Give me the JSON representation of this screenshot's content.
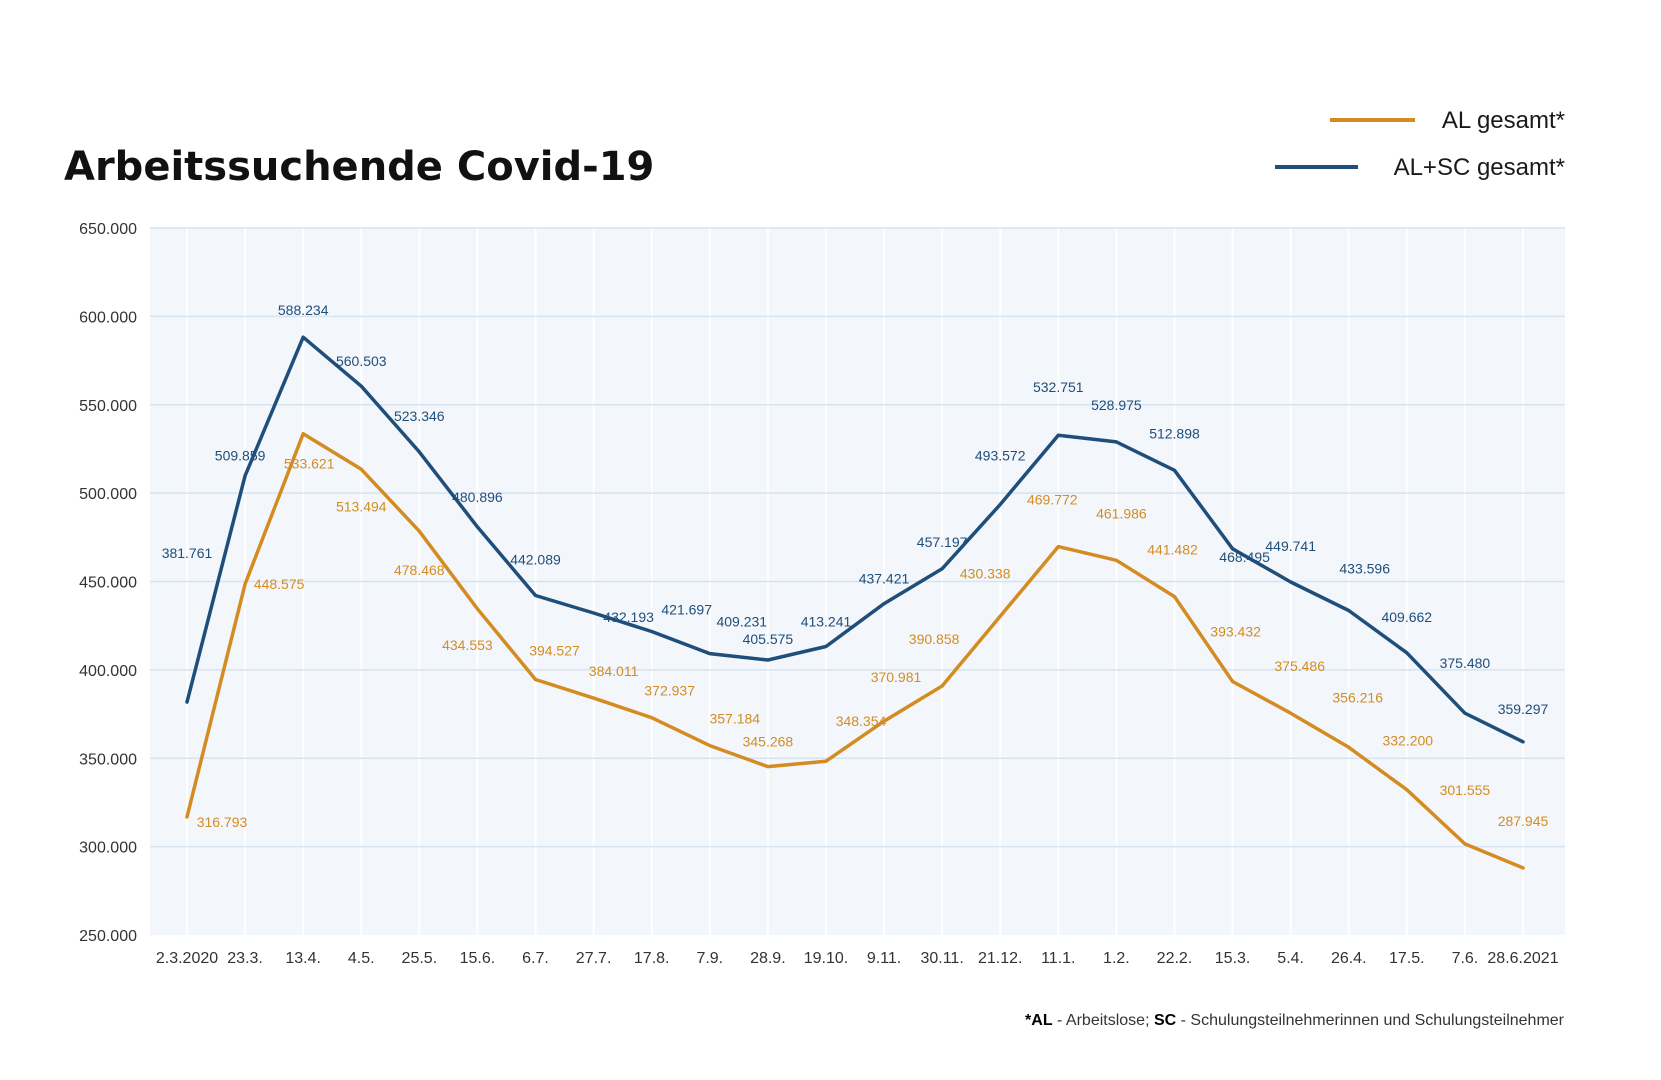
{
  "colors": {
    "al": "#d48c22",
    "alsc": "#1f4e7a",
    "plot_bg": "#f3f7fc",
    "gridline": "#d6e4f2",
    "vgrid": "#ffffff"
  },
  "chart_data": {
    "type": "line",
    "title": "Arbeitssuchende Covid-19",
    "xlabel": "",
    "ylabel": "",
    "ylim": [
      250000,
      650000
    ],
    "yticks": [
      650000,
      600000,
      550000,
      500000,
      450000,
      400000,
      350000,
      300000,
      250000
    ],
    "ytick_labels": [
      "650.000",
      "600.000",
      "550.000",
      "500.000",
      "450.000",
      "400.000",
      "350.000",
      "300.000",
      "250.000"
    ],
    "categories": [
      "2.3.2020",
      "23.3.",
      "13.4.",
      "4.5.",
      "25.5.",
      "15.6.",
      "6.7.",
      "27.7.",
      "17.8.",
      "7.9.",
      "28.9.",
      "19.10.",
      "9.11.",
      "30.11.",
      "21.12.",
      "11.1.",
      "1.2.",
      "22.2.",
      "15.3.",
      "5.4.",
      "26.4.",
      "17.5.",
      "7.6.",
      "28.6.2021"
    ],
    "legend_position": "top-right",
    "series": [
      {
        "name": "AL gesamt*",
        "color_key": "al",
        "values": [
          316793,
          448575,
          533621,
          513494,
          478468,
          434553,
          394527,
          384011,
          372937,
          357184,
          345268,
          348354,
          370981,
          390858,
          430338,
          469772,
          461986,
          441482,
          393432,
          375486,
          356216,
          332200,
          301555,
          287945
        ],
        "labels": [
          "316.793",
          "448.575",
          "533.621",
          "513.494",
          "478.468",
          "434.553",
          "394.527",
          "384.011",
          "372.937",
          "357.184",
          "345.268",
          "348.354",
          "370.981",
          "390.858",
          "430.338",
          "469.772",
          "461.986",
          "441.482",
          "393.432",
          "375.486",
          "356.216",
          "332.200",
          "301.555",
          "287.945"
        ]
      },
      {
        "name": "AL+SC gesamt*",
        "color_key": "alsc",
        "values": [
          381761,
          509859,
          588234,
          560503,
          523346,
          480896,
          442089,
          432193,
          421697,
          409231,
          405575,
          413241,
          437421,
          457197,
          493572,
          532751,
          528975,
          512898,
          468495,
          449741,
          433596,
          409662,
          375480,
          359297
        ],
        "labels": [
          "381.761",
          "509.859",
          "588.234",
          "560.503",
          "523.346",
          "480.896",
          "442.089",
          "432.193",
          "421.697",
          "409.231",
          "405.575",
          "413.241",
          "437.421",
          "457.197",
          "493.572",
          "532.751",
          "528.975",
          "512.898",
          "468.495",
          "449.741",
          "433.596",
          "409.662",
          "375.480",
          "359.297"
        ]
      }
    ],
    "footnote": {
      "al_abbr": "*AL",
      "al_text": " - Arbeitslose; ",
      "sc_abbr": "SC",
      "sc_text": " - Schulungsteilnehmerinnen und Schulungsteilnehmer"
    }
  }
}
